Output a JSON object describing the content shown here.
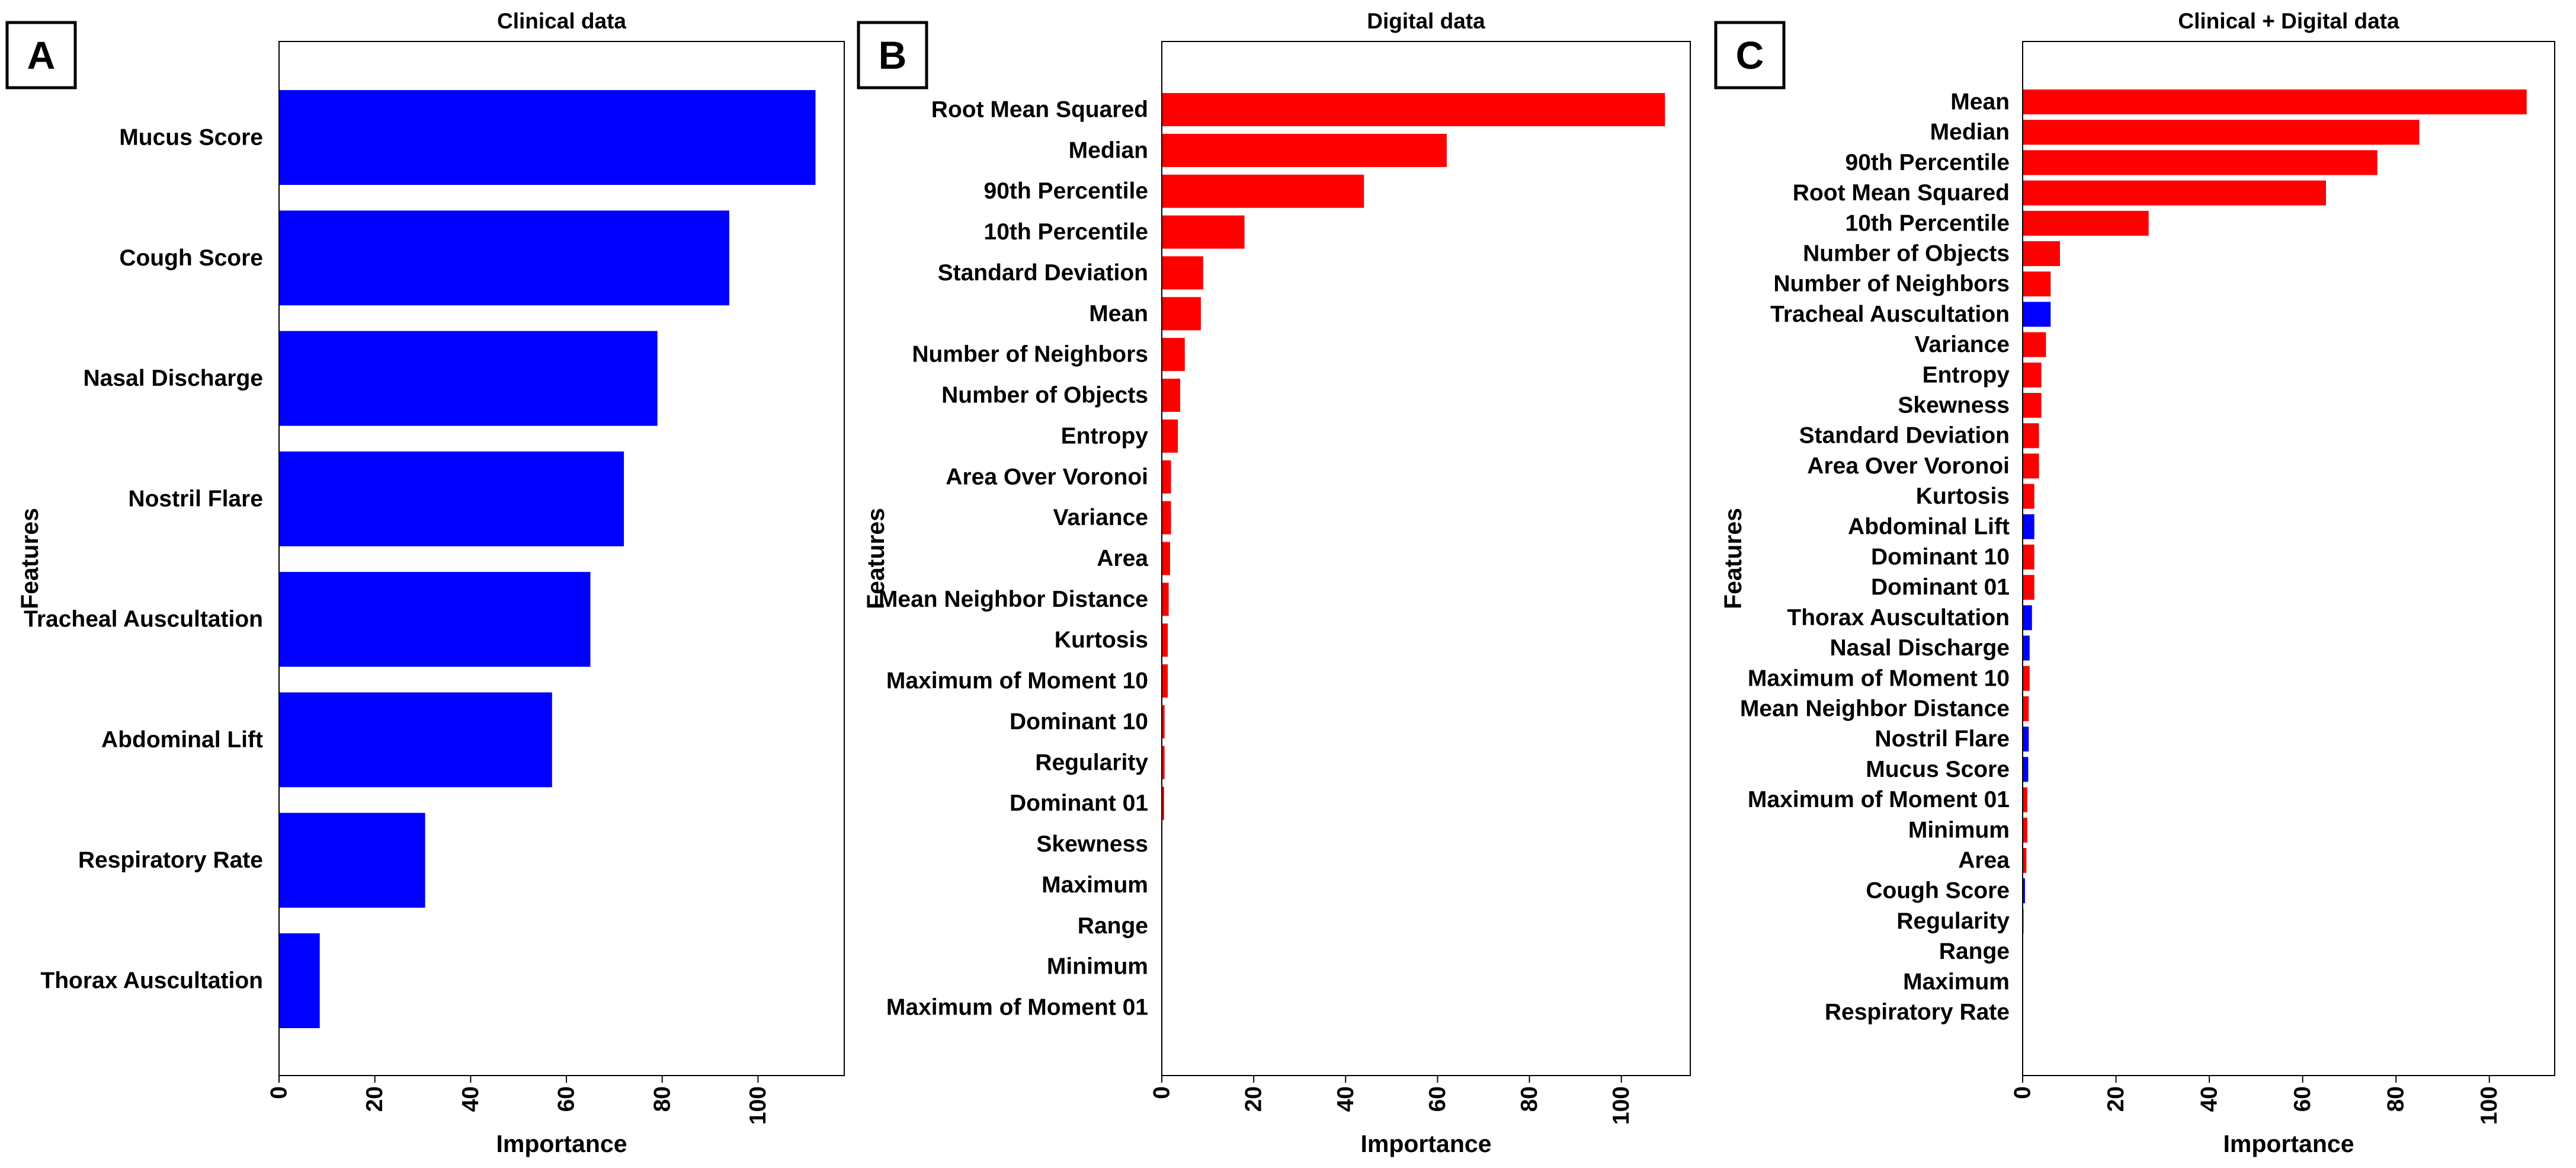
{
  "colors": {
    "clinical": "#0000ff",
    "digital": "#ff0000",
    "text": "#000000",
    "background": "#ffffff"
  },
  "chart_data": [
    {
      "type": "bar",
      "orientation": "horizontal",
      "panel_letter": "A",
      "title": "Clinical data",
      "xlabel": "Importance",
      "ylabel": "Features",
      "xlim": [
        0,
        118
      ],
      "xticks": [
        "0",
        "20",
        "40",
        "60",
        "80",
        "100"
      ],
      "categories": [
        "Mucus Score",
        "Cough Score",
        "Nasal Discharge",
        "Nostril Flare",
        "Tracheal Auscultation",
        "Abdominal Lift",
        "Respiratory Rate",
        "Thorax Auscultation"
      ],
      "values": [
        112,
        94,
        79,
        72,
        65,
        57,
        30.5,
        8.5
      ],
      "sources": [
        "clinical",
        "clinical",
        "clinical",
        "clinical",
        "clinical",
        "clinical",
        "clinical",
        "clinical"
      ]
    },
    {
      "type": "bar",
      "orientation": "horizontal",
      "panel_letter": "B",
      "title": "Digital data",
      "xlabel": "Importance",
      "ylabel": "Features",
      "xlim": [
        0,
        115
      ],
      "xticks": [
        "0",
        "20",
        "40",
        "60",
        "80",
        "100"
      ],
      "categories": [
        "Root Mean Squared",
        "Median",
        "90th Percentile",
        "10th Percentile",
        "Standard Deviation",
        "Mean",
        "Number of Neighbors",
        "Number of Objects",
        "Entropy",
        "Area Over Voronoi",
        "Variance",
        "Area",
        "Mean Neighbor Distance",
        "Kurtosis",
        "Maximum of Moment 10",
        "Dominant 10",
        "Regularity",
        "Dominant 01",
        "Skewness",
        "Maximum",
        "Range",
        "Minimum",
        "Maximum of Moment 01"
      ],
      "values": [
        109.5,
        62,
        44,
        18,
        9,
        8.5,
        5,
        4,
        3.5,
        2,
        2,
        1.8,
        1.5,
        1.3,
        1.3,
        0.6,
        0.6,
        0.5,
        0.1,
        0,
        0,
        0,
        0
      ],
      "sources": [
        "digital",
        "digital",
        "digital",
        "digital",
        "digital",
        "digital",
        "digital",
        "digital",
        "digital",
        "digital",
        "digital",
        "digital",
        "digital",
        "digital",
        "digital",
        "digital",
        "digital",
        "digital",
        "digital",
        "digital",
        "digital",
        "digital",
        "digital"
      ]
    },
    {
      "type": "bar",
      "orientation": "horizontal",
      "panel_letter": "C",
      "title": "Clinical + Digital data",
      "xlabel": "Importance",
      "ylabel": "Features",
      "xlim": [
        0,
        114
      ],
      "xticks": [
        "0",
        "20",
        "40",
        "60",
        "80",
        "100"
      ],
      "categories": [
        "Mean",
        "Median",
        "90th Percentile",
        "Root Mean Squared",
        "10th Percentile",
        "Number of Objects",
        "Number of Neighbors",
        "Tracheal Auscultation",
        "Variance",
        "Entropy",
        "Skewness",
        "Standard Deviation",
        "Area Over Voronoi",
        "Kurtosis",
        "Abdominal Lift",
        "Dominant 10",
        "Dominant 01",
        "Thorax Auscultation",
        "Nasal Discharge",
        "Maximum of Moment 10",
        "Mean Neighbor Distance",
        "Nostril Flare",
        "Mucus Score",
        "Maximum of Moment 01",
        "Minimum",
        "Area",
        "Cough Score",
        "Regularity",
        "Range",
        "Maximum",
        "Respiratory Rate"
      ],
      "values": [
        108,
        85,
        76,
        65,
        27,
        8,
        6,
        6,
        5,
        4,
        4,
        3.5,
        3.5,
        2.5,
        2.5,
        2.5,
        2.5,
        2,
        1.5,
        1.5,
        1.3,
        1.3,
        1.2,
        1,
        1,
        0.8,
        0.5,
        0.2,
        0.1,
        0.1,
        0
      ],
      "sources": [
        "digital",
        "digital",
        "digital",
        "digital",
        "digital",
        "digital",
        "digital",
        "clinical",
        "digital",
        "digital",
        "digital",
        "digital",
        "digital",
        "digital",
        "clinical",
        "digital",
        "digital",
        "clinical",
        "clinical",
        "digital",
        "digital",
        "clinical",
        "clinical",
        "digital",
        "digital",
        "digital",
        "clinical",
        "digital",
        "digital",
        "digital",
        "clinical"
      ]
    }
  ]
}
